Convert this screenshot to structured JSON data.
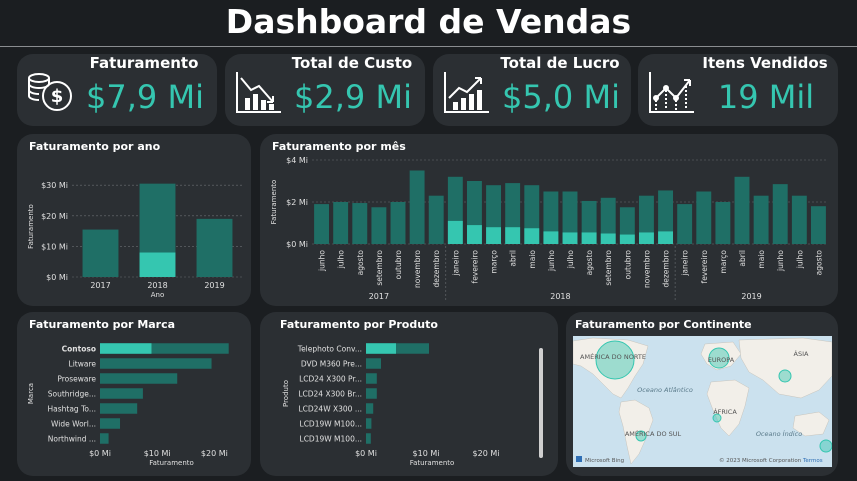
{
  "header": {
    "title": "Dashboard de Vendas"
  },
  "kpis": [
    {
      "label": "Faturamento",
      "value": "$7,9 Mi",
      "icon": "money-coins-icon"
    },
    {
      "label": "Total de Custo",
      "value": "$2,9 Mi",
      "icon": "chart-down-icon"
    },
    {
      "label": "Total de Lucro",
      "value": "$5,0 Mi",
      "icon": "chart-up-icon"
    },
    {
      "label": "Itens Vendidos",
      "value": "19 Mil",
      "icon": "line-chart-icon"
    }
  ],
  "panels": {
    "year": "Faturamento por ano",
    "month": "Faturamento por mês",
    "brand": "Faturamento por Marca",
    "product": "Faturamento por Produto",
    "continent": "Faturamento por Continente"
  },
  "colors": {
    "accent": "#35c6b0",
    "bar": "#1f6f66",
    "bg": "#1b1e21",
    "card": "#2b2f33"
  },
  "chart_data": [
    {
      "id": "year",
      "type": "bar",
      "categories": [
        "2017",
        "2018",
        "2019"
      ],
      "series": [
        {
          "values": [
            15.5,
            30.5,
            19
          ]
        },
        {
          "values": [
            0,
            8,
            0
          ]
        }
      ],
      "xlabel": "Ano",
      "ylabel": "Faturamento",
      "yticks": [
        "$0 Mi",
        "$10 Mi",
        "$20 Mi",
        "$30 Mi"
      ],
      "ylim": [
        0,
        33
      ],
      "grid": true
    },
    {
      "id": "month",
      "type": "bar",
      "categories": [
        "junho",
        "julho",
        "agosto",
        "setembro",
        "outubro",
        "novembro",
        "dezembro",
        "janeiro",
        "fevereiro",
        "março",
        "abril",
        "maio",
        "junho",
        "julho",
        "agosto",
        "setembro",
        "outubro",
        "novembro",
        "dezembro",
        "janeiro",
        "fevereiro",
        "março",
        "abril",
        "maio",
        "junho",
        "julho",
        "agosto"
      ],
      "year_groups": [
        {
          "label": "2017",
          "start": 0,
          "end": 6
        },
        {
          "label": "2018",
          "start": 7,
          "end": 18
        },
        {
          "label": "2019",
          "start": 19,
          "end": 26
        }
      ],
      "series": [
        {
          "values": [
            1.9,
            2.0,
            1.95,
            1.75,
            2.0,
            3.5,
            2.3,
            3.2,
            3.0,
            2.8,
            2.9,
            2.8,
            2.5,
            2.5,
            2.05,
            2.2,
            1.75,
            2.3,
            2.55,
            1.9,
            2.5,
            2.0,
            3.2,
            2.3,
            2.85,
            2.3,
            1.8
          ]
        },
        {
          "values": [
            0,
            0,
            0,
            0,
            0,
            0,
            0,
            1.1,
            0.9,
            0.8,
            0.8,
            0.75,
            0.6,
            0.55,
            0.55,
            0.5,
            0.45,
            0.55,
            0.6,
            0,
            0,
            0,
            0,
            0,
            0,
            0,
            0
          ]
        }
      ],
      "ylabel": "Faturamento",
      "yticks": [
        "$0 Mi",
        "$2 Mi",
        "$4 Mi"
      ],
      "ylim": [
        0,
        4
      ],
      "grid": true
    },
    {
      "id": "brand",
      "type": "bar",
      "orientation": "horizontal",
      "categories": [
        "Contoso",
        "Litware",
        "Proseware",
        "Southridge...",
        "Hashtag To...",
        "Wide Worl...",
        "Northwind ..."
      ],
      "series": [
        {
          "values": [
            22.5,
            19.5,
            13.5,
            7.5,
            6.5,
            3.5,
            1.5
          ]
        },
        {
          "values": [
            9.0,
            0,
            0,
            0,
            0,
            0,
            0
          ]
        }
      ],
      "xlabel": "Faturamento",
      "ylabel": "Marca",
      "xticks": [
        "$0 Mi",
        "$10 Mi",
        "$20 Mi"
      ],
      "xlim": [
        0,
        25
      ]
    },
    {
      "id": "product",
      "type": "bar",
      "orientation": "horizontal",
      "categories": [
        "Telephoto Conv...",
        "DVD M360 Pre...",
        "LCD24 X300 Pr...",
        "LCD24 X300 Br...",
        "LCD24W X300 ...",
        "LCD19W M100...",
        "LCD19W M100..."
      ],
      "series": [
        {
          "values": [
            10.5,
            2.5,
            1.8,
            1.8,
            1.2,
            0.9,
            0.8
          ]
        },
        {
          "values": [
            5.0,
            0,
            0,
            0,
            0,
            0,
            0
          ]
        }
      ],
      "xlabel": "Faturamento",
      "ylabel": "Produto",
      "xticks": [
        "$0 Mi",
        "$10 Mi",
        "$20 Mi"
      ],
      "xlim": [
        0,
        22
      ]
    }
  ],
  "map": {
    "labels": [
      "AMÉRICA DO NORTE",
      "EUROPA",
      "ÁSIA",
      "Oceano Atlântico",
      "ÁFRICA",
      "AMÉRICA DO SUL",
      "Oceano Índico"
    ],
    "provider": "Microsoft Bing",
    "copyright": "© 2023 Microsoft Corporation",
    "terms": "Termos"
  }
}
